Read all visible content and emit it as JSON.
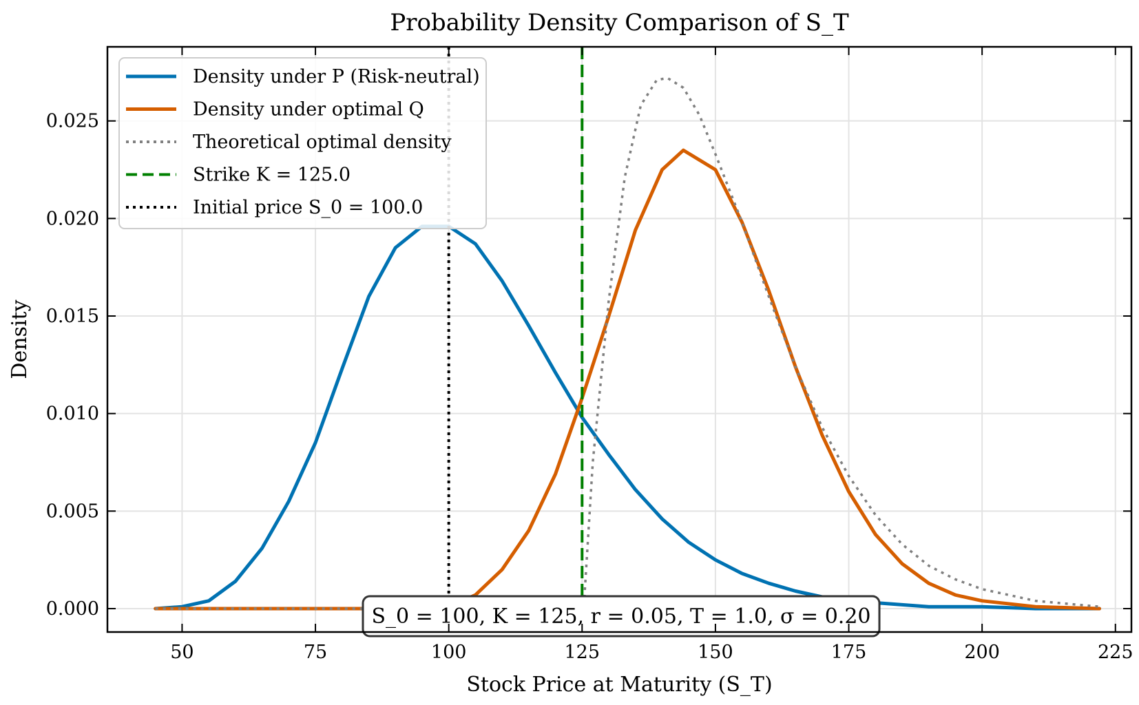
{
  "chart_data": {
    "type": "line",
    "title": "Probability Density Comparison of S_T",
    "xlabel": "Stock Price at Maturity (S_T)",
    "ylabel": "Density",
    "xlim": [
      36,
      228
    ],
    "ylim": [
      -0.0012,
      0.0288
    ],
    "x_ticks": [
      "50",
      "75",
      "100",
      "125",
      "150",
      "175",
      "200",
      "225"
    ],
    "x_tick_values": [
      50,
      75,
      100,
      125,
      150,
      175,
      200,
      225
    ],
    "y_ticks": [
      "0.000",
      "0.005",
      "0.010",
      "0.015",
      "0.020",
      "0.025"
    ],
    "y_tick_values": [
      0.0,
      0.005,
      0.01,
      0.015,
      0.02,
      0.025
    ],
    "grid": true,
    "legend_position": "top-left",
    "series": [
      {
        "name": "Density under P (Risk-neutral)",
        "color": "#0072b2",
        "style": "solid",
        "x": [
          45,
          50,
          55,
          60,
          65,
          70,
          75,
          80,
          85,
          90,
          95,
          100,
          105,
          110,
          115,
          120,
          125,
          130,
          135,
          140,
          145,
          150,
          155,
          160,
          165,
          170,
          175,
          180,
          190,
          200,
          210,
          222
        ],
        "y": [
          0.0,
          0.0001,
          0.0004,
          0.0014,
          0.0031,
          0.0055,
          0.0085,
          0.0123,
          0.016,
          0.0185,
          0.0196,
          0.0196,
          0.0187,
          0.0168,
          0.0145,
          0.0121,
          0.0098,
          0.0079,
          0.0061,
          0.0046,
          0.0034,
          0.0025,
          0.0018,
          0.0013,
          0.0009,
          0.0006,
          0.0004,
          0.0003,
          0.0001,
          0.0001,
          0.0,
          0.0
        ]
      },
      {
        "name": "Density under optimal Q",
        "color": "#d55e00",
        "style": "solid",
        "x": [
          45,
          95,
          100,
          105,
          110,
          115,
          120,
          125,
          130,
          135,
          140,
          144,
          150,
          155,
          160,
          165,
          170,
          175,
          180,
          185,
          190,
          195,
          200,
          210,
          222
        ],
        "y": [
          0.0,
          0.0,
          0.0001,
          0.0007,
          0.002,
          0.004,
          0.0069,
          0.0108,
          0.015,
          0.0194,
          0.0225,
          0.0235,
          0.0225,
          0.0198,
          0.0163,
          0.0124,
          0.0089,
          0.006,
          0.0038,
          0.0023,
          0.0013,
          0.0007,
          0.0004,
          0.0001,
          0.0
        ]
      },
      {
        "name": "Theoretical optimal density",
        "color": "#808080",
        "style": "dotted",
        "x": [
          45,
          125,
          125.3,
          127,
          130,
          133,
          136,
          139,
          141,
          144,
          147,
          150,
          155,
          160,
          165,
          170,
          175,
          180,
          185,
          190,
          195,
          200,
          210,
          222
        ],
        "y": [
          0.0,
          0.0,
          0.0,
          0.0075,
          0.0158,
          0.0221,
          0.0258,
          0.0271,
          0.0272,
          0.0267,
          0.0253,
          0.0233,
          0.0198,
          0.016,
          0.0124,
          0.0093,
          0.0068,
          0.0048,
          0.0033,
          0.0022,
          0.0015,
          0.001,
          0.0004,
          0.0001
        ]
      }
    ],
    "vlines": [
      {
        "name": "Strike K = 125.0",
        "x": 125.0,
        "color": "#008000",
        "style": "dashed"
      },
      {
        "name": "Initial price S_0 = 100.0",
        "x": 100.0,
        "color": "#000000",
        "style": "dotted"
      }
    ],
    "annotation": "S_0 = 100, K = 125, r = 0.05, T = 1.0, σ = 0.20"
  },
  "legend_entries": [
    {
      "label": "Density under P (Risk-neutral)",
      "color": "#0072b2",
      "style": "solid"
    },
    {
      "label": "Density under optimal Q",
      "color": "#d55e00",
      "style": "solid"
    },
    {
      "label": "Theoretical optimal density",
      "color": "#808080",
      "style": "dotted"
    },
    {
      "label": "Strike K = 125.0",
      "color": "#008000",
      "style": "dashed"
    },
    {
      "label": "Initial price S_0 = 100.0",
      "color": "#000000",
      "style": "dotted"
    }
  ]
}
